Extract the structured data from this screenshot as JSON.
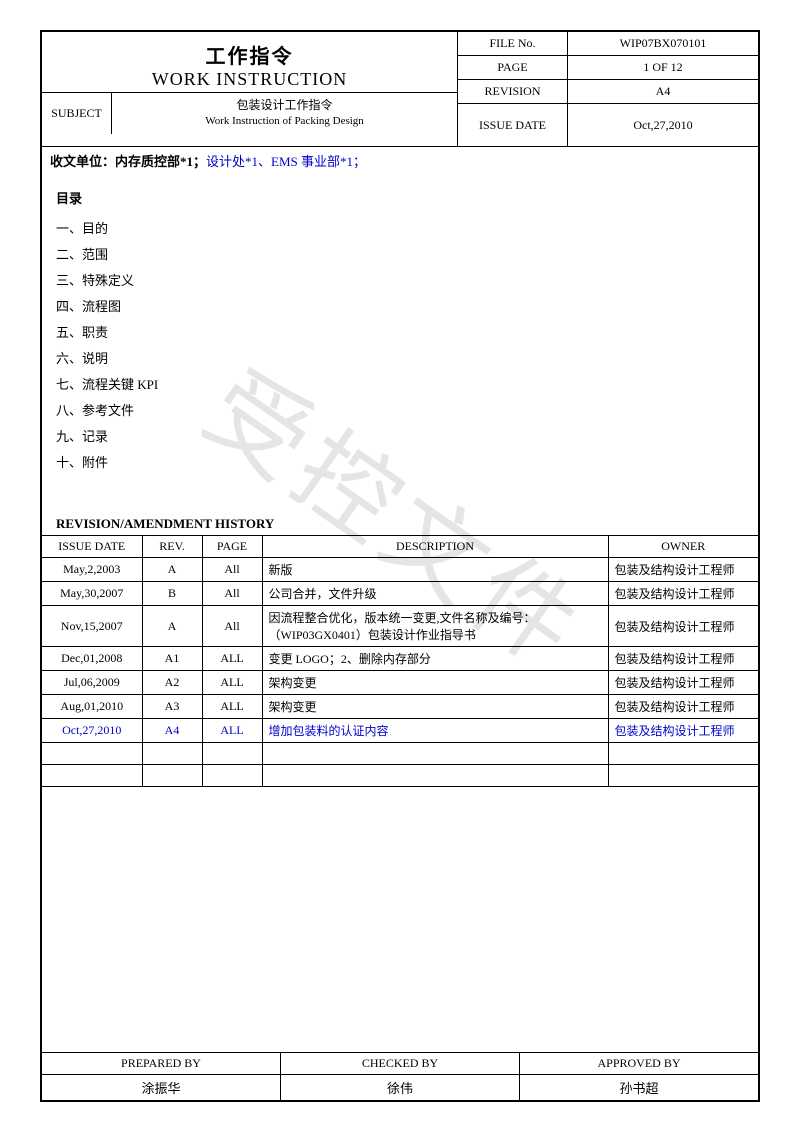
{
  "watermark": "受控文件",
  "header": {
    "title_cn": "工作指令",
    "title_en": "WORK INSTRUCTION",
    "subject_label": "SUBJECT",
    "subject_cn": "包装设计工作指令",
    "subject_en": "Work Instruction of Packing Design",
    "rows": [
      {
        "label": "FILE No.",
        "value": "WIP07BX070101"
      },
      {
        "label": "PAGE",
        "value": "1 OF 12"
      },
      {
        "label": "REVISION",
        "value": "A4"
      },
      {
        "label": "ISSUE DATE",
        "value": "Oct,27,2010"
      }
    ]
  },
  "distribution": {
    "label": "收文单位：",
    "parts": [
      {
        "text": "内存质控部*1；",
        "blue": false
      },
      {
        "text": "设计处*1、EMS 事业部*1；",
        "blue": true
      }
    ]
  },
  "toc": {
    "title": "目录",
    "items": [
      "一、目的",
      "二、范围",
      "三、特殊定义",
      "四、流程图",
      "五、职责",
      "六、说明",
      "七、流程关键 KPI",
      "八、参考文件",
      "九、记录",
      "十、附件"
    ]
  },
  "revision": {
    "title": "REVISION/AMENDMENT HISTORY",
    "columns": [
      "ISSUE DATE",
      "REV.",
      "PAGE",
      "DESCRIPTION",
      "OWNER"
    ],
    "col_widths": [
      "100px",
      "60px",
      "60px",
      "auto",
      "150px"
    ],
    "rows": [
      {
        "date": "May,2,2003",
        "rev": "A",
        "page": "All",
        "desc": "新版",
        "owner": "包装及结构设计工程师",
        "blue": false
      },
      {
        "date": "May,30,2007",
        "rev": "B",
        "page": "All",
        "desc": "公司合并，文件升级",
        "owner": "包装及结构设计工程师",
        "blue": false
      },
      {
        "date": "Nov,15,2007",
        "rev": "A",
        "page": "All",
        "desc": "因流程整合优化，版本统一变更,文件名称及编号：（WIP03GX0401）包装设计作业指导书",
        "owner": "包装及结构设计工程师",
        "blue": false
      },
      {
        "date": "Dec,01,2008",
        "rev": "A1",
        "page": "ALL",
        "desc": "变更 LOGO；2、删除内存部分",
        "owner": "包装及结构设计工程师",
        "blue": false
      },
      {
        "date": "Jul,06,2009",
        "rev": "A2",
        "page": "ALL",
        "desc": "架构变更",
        "owner": "包装及结构设计工程师",
        "blue": false
      },
      {
        "date": "Aug,01,2010",
        "rev": "A3",
        "page": "ALL",
        "desc": "架构变更",
        "owner": "包装及结构设计工程师",
        "blue": false
      },
      {
        "date": "Oct,27,2010",
        "rev": "A4",
        "page": "ALL",
        "desc": "增加包装料的认证内容",
        "owner": "包装及结构设计工程师",
        "blue": true
      }
    ],
    "empty_rows": 2
  },
  "signoff": {
    "cols": [
      {
        "label": "PREPARED BY",
        "value": "涂振华"
      },
      {
        "label": "CHECKED BY",
        "value": "徐伟"
      },
      {
        "label": "APPROVED BY",
        "value": "孙书超"
      }
    ]
  },
  "colors": {
    "text": "#000000",
    "blue_text": "#0000cc",
    "watermark": "#cccccc",
    "border": "#000000",
    "background": "#ffffff"
  }
}
